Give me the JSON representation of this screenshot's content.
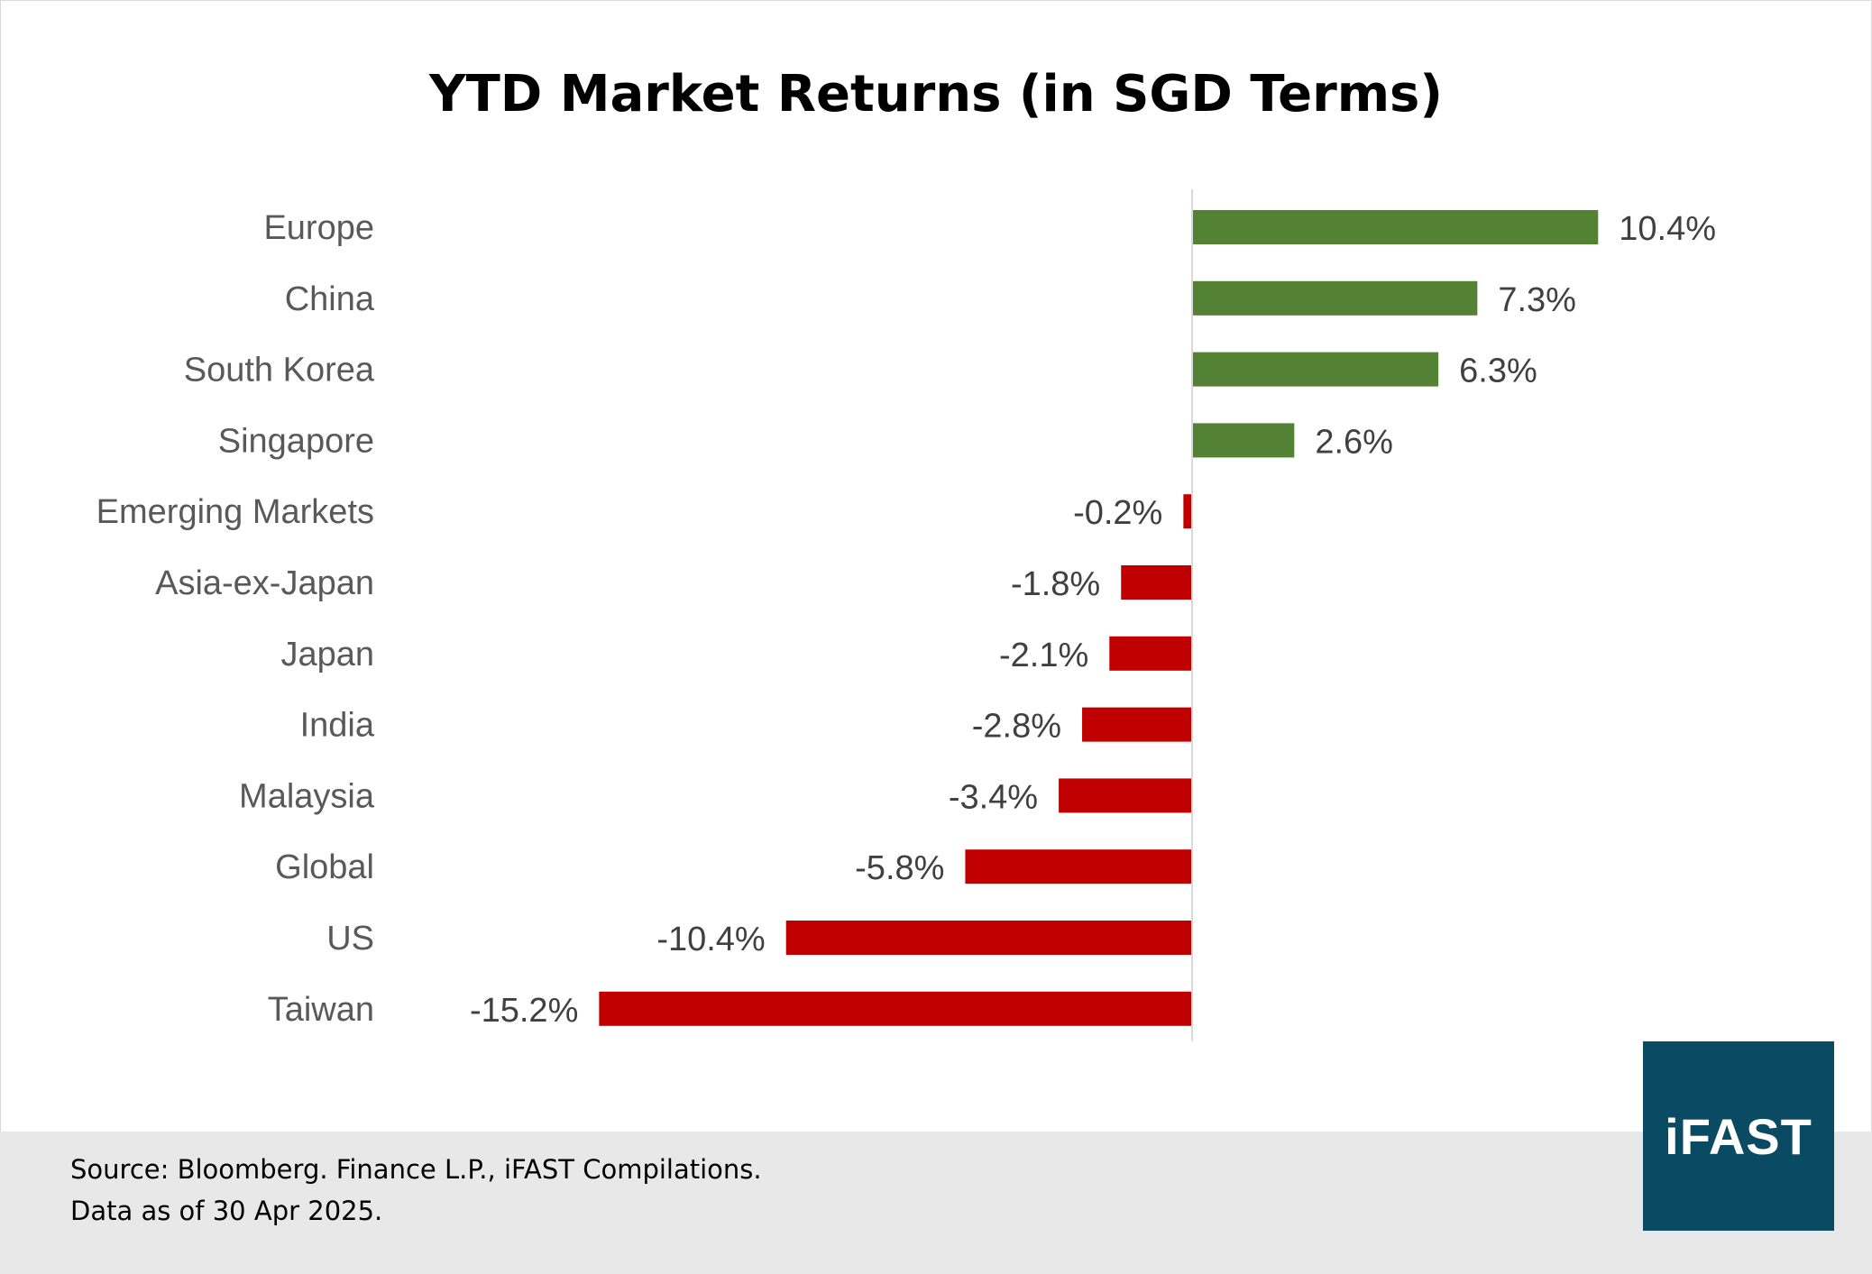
{
  "chart_data": {
    "type": "bar",
    "orientation": "horizontal",
    "title": "YTD Market Returns (in SGD Terms)",
    "categories": [
      "Europe",
      "China",
      "South Korea",
      "Singapore",
      "Emerging Markets",
      "Asia-ex-Japan",
      "Japan",
      "India",
      "Malaysia",
      "Global",
      "US",
      "Taiwan"
    ],
    "values": [
      10.4,
      7.3,
      6.3,
      2.6,
      -0.2,
      -1.8,
      -2.1,
      -2.8,
      -3.4,
      -5.8,
      -10.4,
      -15.2
    ],
    "value_labels": [
      "10.4%",
      "7.3%",
      "6.3%",
      "2.6%",
      "-0.2%",
      "-1.8%",
      "-2.1%",
      "-2.8%",
      "-3.4%",
      "-5.8%",
      "-10.4%",
      "-15.2%"
    ],
    "positive_color": "#548235",
    "negative_color": "#c00000",
    "xlabel": "",
    "ylabel": "",
    "grid": false,
    "legend": "none"
  },
  "footer": {
    "source_line_1": "Source: Bloomberg. Finance L.P., iFAST Compilations.",
    "source_line_2": "Data as of 30 Apr 2025."
  },
  "logo": {
    "text": "iFAST",
    "background_color": "#0b4a63"
  }
}
